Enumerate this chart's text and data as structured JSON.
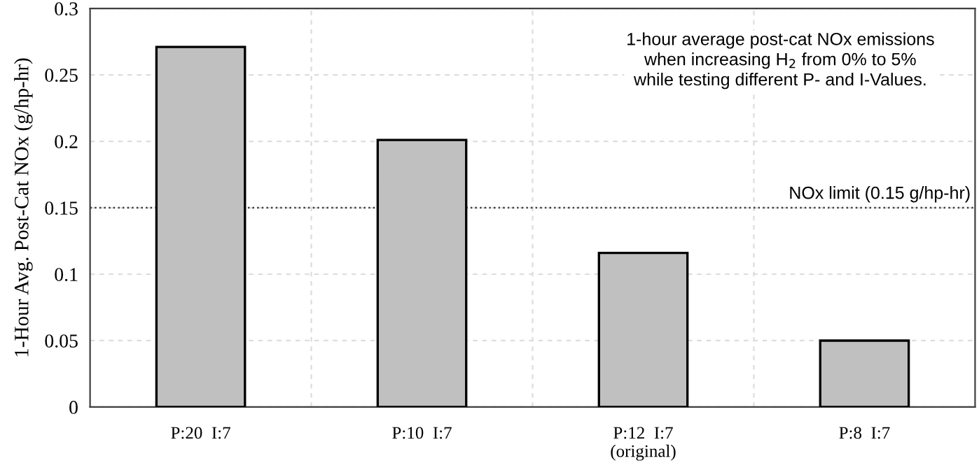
{
  "chart_data": {
    "type": "bar",
    "categories": [
      "P:20  I:7",
      "P:10  I:7",
      "P:12  I:7\n(original)",
      "P:8  I:7"
    ],
    "values": [
      0.271,
      0.201,
      0.116,
      0.05
    ],
    "color": "#c0c0c0",
    "ylabel": "1-Hour Avg. Post-Cat NOx (g/hp-hr)",
    "ylim": [
      0,
      0.3
    ],
    "yticks": [
      0,
      0.05,
      0.1,
      0.15,
      0.2,
      0.25,
      0.3
    ],
    "grid": true,
    "ref_lines": [
      {
        "axis": "y",
        "value": 0.15,
        "label": "NOx limit (0.15 g/hp-hr)",
        "color": "#404040",
        "line_style": "dotted"
      }
    ],
    "annotations": [
      "1-hour average post-cat NOx emissions\nwhen increasing H$_{2}$ from 0% to 5%\nwhile testing different P- and I-Values."
    ]
  }
}
